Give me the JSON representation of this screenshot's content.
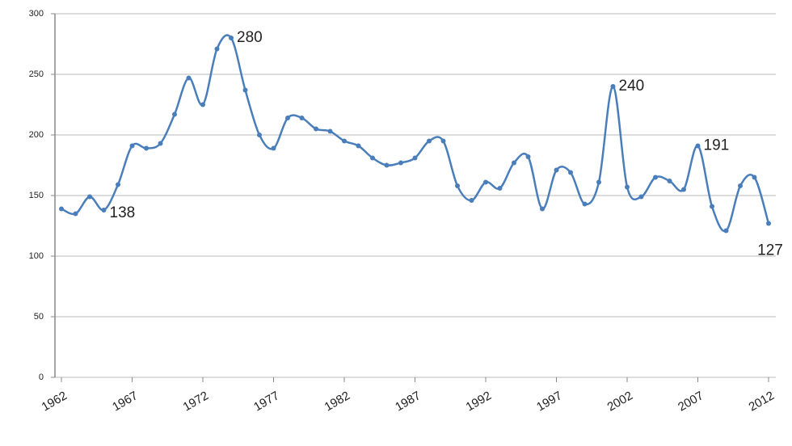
{
  "chart_data": {
    "type": "line",
    "x": [
      1962,
      1963,
      1964,
      1965,
      1966,
      1967,
      1968,
      1969,
      1970,
      1971,
      1972,
      1973,
      1974,
      1975,
      1976,
      1977,
      1978,
      1979,
      1980,
      1981,
      1982,
      1983,
      1984,
      1985,
      1986,
      1987,
      1988,
      1989,
      1990,
      1991,
      1992,
      1993,
      1994,
      1995,
      1996,
      1997,
      1998,
      1999,
      2000,
      2001,
      2002,
      2003,
      2004,
      2005,
      2006,
      2007,
      2008,
      2009,
      2010,
      2011,
      2012
    ],
    "values": [
      139,
      135,
      149,
      138,
      159,
      191,
      189,
      193,
      217,
      247,
      225,
      271,
      280,
      237,
      200,
      189,
      214,
      214,
      205,
      203,
      195,
      191,
      181,
      175,
      177,
      181,
      195,
      195,
      158,
      146,
      161,
      156,
      177,
      182,
      139,
      171,
      169,
      143,
      161,
      240,
      157,
      149,
      165,
      162,
      155,
      191,
      141,
      121,
      158,
      165,
      127
    ],
    "value_labels": [
      null,
      null,
      null,
      "138",
      null,
      null,
      null,
      null,
      null,
      null,
      null,
      null,
      "280",
      null,
      null,
      null,
      null,
      null,
      null,
      null,
      null,
      null,
      null,
      null,
      null,
      null,
      null,
      null,
      null,
      null,
      null,
      null,
      null,
      null,
      null,
      null,
      null,
      null,
      null,
      "240",
      null,
      null,
      null,
      null,
      null,
      "191",
      null,
      null,
      null,
      null,
      "127"
    ],
    "color": "#4a7ebb",
    "xlim": [
      1962,
      2012
    ],
    "xticks": [
      1962,
      1967,
      1972,
      1977,
      1982,
      1987,
      1992,
      1997,
      2002,
      2007,
      2012
    ],
    "ylim": [
      0,
      300
    ],
    "yticks": [
      0,
      50,
      100,
      150,
      200,
      250,
      300
    ],
    "grid": true
  }
}
